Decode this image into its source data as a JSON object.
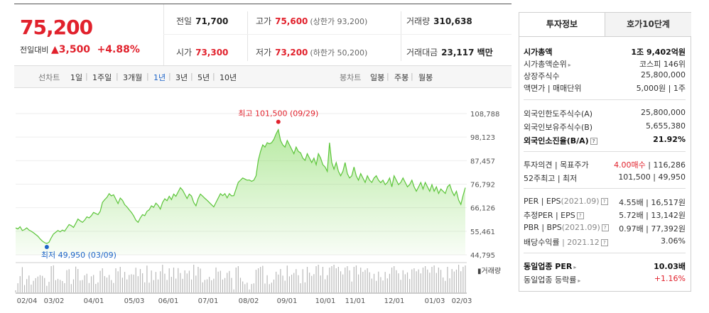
{
  "summary": {
    "price": "75,200",
    "change_label": "전일대비",
    "change_arrow": "▲",
    "change_value": "3,500",
    "change_pct": "+4.88%"
  },
  "stats": {
    "prev_close": {
      "label": "전일",
      "value": "71,700"
    },
    "high": {
      "label": "고가",
      "value": "75,600",
      "sub": "(상한가 93,200)"
    },
    "volume": {
      "label": "거래량",
      "value": "310,638"
    },
    "open": {
      "label": "시가",
      "value": "73,300"
    },
    "low": {
      "label": "저가",
      "value": "73,200",
      "sub": "(하한가 50,200)"
    },
    "amount": {
      "label": "거래대금",
      "value": "23,117 백만"
    }
  },
  "period_bar": {
    "line_chart_label": "선차트",
    "periods": [
      "1일",
      "1주일",
      "3개월",
      "1년",
      "3년",
      "5년",
      "10년"
    ],
    "active_period": "1년",
    "candle_chart_label": "봉차트",
    "candle_periods": [
      "일봉",
      "주봉",
      "월봉"
    ]
  },
  "chart_data": {
    "type": "area",
    "title": "",
    "y_ticks": [
      108788,
      98123,
      87457,
      76792,
      66126,
      55461,
      44795
    ],
    "ylim": [
      44795,
      108788
    ],
    "x_tick_labels": [
      "02/04",
      "03/02",
      "04/01",
      "05/03",
      "06/01",
      "07/01",
      "08/02",
      "09/01",
      "10/01",
      "11/01",
      "12/01",
      "01/03",
      "02/03"
    ],
    "max_annotation": "최고 101,500 (09/29)",
    "min_annotation": "최저 49,950 (03/09)",
    "volume_label": "거래량",
    "area_color": "#7ed957",
    "series": [
      {
        "values": [
          57000,
          56500,
          57500,
          55800,
          56200,
          57000,
          56000,
          55500,
          54800,
          54000,
          53200,
          52000,
          51000,
          50300,
          49950,
          50500,
          52500,
          54200,
          55000,
          55800,
          55200,
          56000,
          55500,
          57000,
          58500,
          58000,
          57200,
          59000,
          61000,
          60200,
          59500,
          60500,
          62000,
          61500,
          62500,
          64000,
          63500,
          63000,
          64500,
          68500,
          69800,
          70800,
          72500,
          71500,
          72000,
          70000,
          68000,
          70500,
          69500,
          67500,
          66500,
          65200,
          64000,
          62500,
          60500,
          59500,
          61500,
          63000,
          62500,
          64500,
          65200,
          67000,
          66300,
          68200,
          67200,
          65500,
          68500,
          70200,
          69300,
          71300,
          69800,
          72300,
          71300,
          73300,
          75200,
          74100,
          72200,
          70300,
          72300,
          71400,
          68500,
          67000,
          70300,
          72300,
          71400,
          70400,
          69500,
          68500,
          67500,
          66500,
          68500,
          70500,
          72500,
          71600,
          72500,
          70600,
          72500,
          71500,
          71600,
          74600,
          77600,
          78600,
          79600,
          79100,
          78600,
          78700,
          78100,
          78600,
          80600,
          87600,
          91600,
          94600,
          93600,
          95600,
          95100,
          95600,
          97100,
          99600,
          101500,
          96600,
          94600,
          93600,
          96600,
          94600,
          92600,
          90600,
          93600,
          91600,
          91000,
          88600,
          87600,
          90600,
          88600,
          86600,
          88600,
          85600,
          90600,
          88600,
          85600,
          84600,
          82600,
          95600,
          86600,
          83600,
          86600,
          82600,
          80600,
          82600,
          86600,
          81600,
          79600,
          80600,
          84600,
          80600,
          78600,
          81600,
          79600,
          77600,
          80600,
          78600,
          77600,
          79600,
          80600,
          78600,
          77500,
          78600,
          76600,
          77600,
          79600,
          75600,
          80600,
          78600,
          76600,
          77600,
          79600,
          77600,
          75600,
          76600,
          78600,
          75600,
          73600,
          75600,
          77600,
          74600,
          77600,
          75600,
          73600,
          76600,
          73600,
          75600,
          72600,
          74600,
          73600,
          72600,
          75600,
          76600,
          73600,
          71600,
          73600,
          69600,
          67600,
          71700,
          75200
        ]
      }
    ]
  },
  "panel": {
    "tabs": [
      "투자정보",
      "호가10단계"
    ],
    "active_tab": "투자정보",
    "group1": [
      {
        "label": "시가총액",
        "value": "1조 9,402억원",
        "bold": true
      },
      {
        "label": "시가총액순위",
        "value": "코스피 146위",
        "arrow": true
      },
      {
        "label": "상장주식수",
        "value": "25,800,000"
      },
      {
        "label": "액면가 | 매매단위",
        "value": "5,000원 | 1주"
      }
    ],
    "group2": [
      {
        "label": "외국인한도주식수(A)",
        "value": "25,800,000"
      },
      {
        "label": "외국인보유주식수(B)",
        "value": "5,655,380"
      },
      {
        "label": "외국인소진율(B/A)",
        "value": "21.92%",
        "bold": true,
        "help": true
      }
    ],
    "group3": [
      {
        "label": "투자의견 | 목표주가",
        "value_red": "4.00매수",
        "value": "116,286"
      },
      {
        "label": "52주최고 | 최저",
        "value": "101,500 | 49,950"
      }
    ],
    "group4": [
      {
        "label": "PER | EPS",
        "label_gray": "(2021.09)",
        "help": true,
        "value": "4.55배 | 16,517원"
      },
      {
        "label": "추정PER | EPS",
        "help": true,
        "value": "5.72배 | 13,142원"
      },
      {
        "label": "PBR | BPS",
        "label_gray": "(2021.09)",
        "help": true,
        "value": "0.97배 | 77,392원"
      },
      {
        "label": "배당수익률",
        "label_gray": "| 2021.12",
        "help": true,
        "value": "3.06%"
      }
    ],
    "group5": [
      {
        "label": "동일업종 PER",
        "value": "10.03배",
        "bold": true,
        "arrow": true
      },
      {
        "label": "동일업종 등락률",
        "value": "+1.16%",
        "red": true,
        "arrow": true
      }
    ]
  }
}
